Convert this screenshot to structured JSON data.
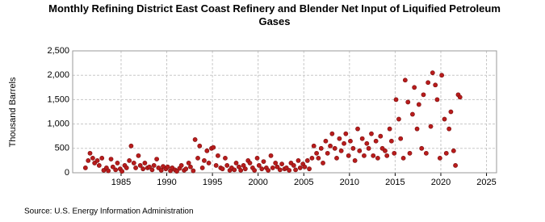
{
  "chart_data": {
    "type": "scatter",
    "title": "Monthly Refining District East Coast Refinery and Blender Net Input of Liquified Petroleum Gases",
    "y_label": "Thousand Barrels",
    "source": "Source: U.S. Energy Information Administration",
    "color": "#b81c1c",
    "grid": true,
    "xlim": [
      1979.7,
      2026.1
    ],
    "ylim": [
      0,
      2500
    ],
    "xticks": [
      1985,
      1990,
      1995,
      2000,
      2005,
      2010,
      2015,
      2020,
      2025
    ],
    "yticks": [
      0,
      500,
      {
        "value": 1000,
        "label": "1,000"
      },
      {
        "value": 1500,
        "label": "1,500"
      },
      {
        "value": 2000,
        "label": "2,000"
      },
      {
        "value": 2500,
        "label": "2,500"
      }
    ],
    "x": [
      1981.1,
      1981.4,
      1981.6,
      1981.9,
      1982.1,
      1982.4,
      1982.6,
      1982.9,
      1983.1,
      1983.4,
      1983.6,
      1983.9,
      1984.1,
      1984.4,
      1984.6,
      1984.9,
      1985.1,
      1985.4,
      1985.6,
      1985.9,
      1986.1,
      1986.4,
      1986.6,
      1986.9,
      1987.1,
      1987.4,
      1987.6,
      1987.9,
      1988.1,
      1988.4,
      1988.6,
      1988.9,
      1989.1,
      1989.4,
      1989.6,
      1989.9,
      1990.1,
      1990.4,
      1990.6,
      1990.9,
      1991.1,
      1991.4,
      1991.6,
      1991.9,
      1992.1,
      1992.4,
      1992.6,
      1992.9,
      1993.1,
      1993.4,
      1993.6,
      1993.9,
      1994.1,
      1994.4,
      1994.6,
      1994.9,
      1995.1,
      1995.4,
      1995.6,
      1995.9,
      1996.1,
      1996.4,
      1996.6,
      1996.9,
      1997.1,
      1997.4,
      1997.6,
      1997.9,
      1998.1,
      1998.4,
      1998.6,
      1998.9,
      1999.1,
      1999.4,
      1999.6,
      1999.9,
      2000.1,
      2000.4,
      2000.6,
      2000.9,
      2001.1,
      2001.4,
      2001.6,
      2001.9,
      2002.1,
      2002.4,
      2002.6,
      2002.9,
      2003.1,
      2003.4,
      2003.6,
      2003.9,
      2004.1,
      2004.4,
      2004.6,
      2004.9,
      2005.1,
      2005.4,
      2005.6,
      2005.9,
      2006.1,
      2006.4,
      2006.6,
      2006.9,
      2007.1,
      2007.4,
      2007.6,
      2007.9,
      2008.1,
      2008.4,
      2008.6,
      2008.9,
      2009.1,
      2009.4,
      2009.6,
      2009.9,
      2010.1,
      2010.4,
      2010.6,
      2010.9,
      2011.1,
      2011.4,
      2011.6,
      2011.9,
      2012.1,
      2012.4,
      2012.6,
      2012.9,
      2013.1,
      2013.4,
      2013.6,
      2013.9,
      2014.1,
      2014.4,
      2014.6,
      2014.9,
      2015.1,
      2015.4,
      2015.6,
      2015.9,
      2016.1,
      2016.4,
      2016.6,
      2016.9,
      2017.1,
      2017.4,
      2017.6,
      2017.9,
      2018.1,
      2018.4,
      2018.6,
      2018.9,
      2019.1,
      2019.4,
      2019.6,
      2019.9,
      2020.1,
      2020.4,
      2020.6,
      2020.9,
      2021.1,
      2021.4,
      2021.6,
      2021.9,
      2022.1
    ],
    "values": [
      100,
      250,
      400,
      300,
      200,
      250,
      150,
      300,
      50,
      100,
      40,
      280,
      120,
      60,
      200,
      80,
      30,
      150,
      100,
      250,
      550,
      200,
      100,
      350,
      150,
      80,
      200,
      100,
      120,
      60,
      150,
      280,
      100,
      50,
      130,
      80,
      120,
      40,
      100,
      60,
      30,
      90,
      150,
      50,
      80,
      200,
      120,
      40,
      680,
      300,
      550,
      100,
      250,
      450,
      200,
      500,
      520,
      150,
      350,
      100,
      80,
      300,
      150,
      50,
      100,
      60,
      200,
      120,
      50,
      150,
      80,
      250,
      200,
      100,
      50,
      300,
      150,
      80,
      230,
      100,
      50,
      350,
      100,
      200,
      120,
      60,
      180,
      80,
      100,
      50,
      200,
      150,
      60,
      250,
      100,
      180,
      120,
      250,
      80,
      300,
      550,
      400,
      300,
      500,
      200,
      650,
      400,
      550,
      800,
      500,
      300,
      700,
      450,
      600,
      800,
      350,
      650,
      500,
      250,
      900,
      450,
      700,
      350,
      600,
      500,
      800,
      350,
      650,
      300,
      750,
      500,
      450,
      350,
      900,
      650,
      400,
      1500,
      1100,
      700,
      300,
      1900,
      1450,
      400,
      1200,
      1750,
      900,
      1400,
      500,
      1600,
      400,
      1850,
      950,
      2050,
      1800,
      1500,
      300,
      2000,
      1100,
      400,
      900,
      1250,
      450,
      150,
      1600,
      1550
    ]
  }
}
